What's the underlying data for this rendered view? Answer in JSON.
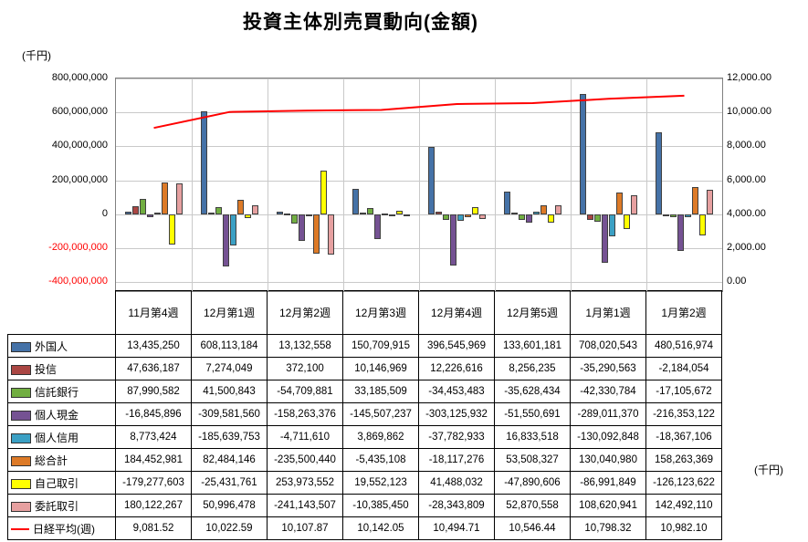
{
  "title": "投資主体別売買動向(金額)",
  "left_axis": {
    "unit": "(千円)",
    "ticks": [
      800000000,
      600000000,
      400000000,
      200000000,
      0,
      -200000000,
      -400000000
    ],
    "negative_tick_color": "#ff0000"
  },
  "right_axis": {
    "unit": "(千円)",
    "ticks": [
      12000,
      10000,
      8000,
      6000,
      4000,
      2000,
      0
    ]
  },
  "chart_data": {
    "type": "bar",
    "grid": true,
    "legend_position": "table-left",
    "categories": [
      "11月第4週",
      "12月第1週",
      "12月第2週",
      "12月第3週",
      "12月第4週",
      "12月第5週",
      "1月第1週",
      "1月第2週"
    ],
    "left_ylim": [
      -400000000,
      800000000
    ],
    "right_ylim": [
      0,
      12000
    ],
    "line_color": "#ff0000",
    "series": [
      {
        "name": "外国人",
        "kind": "bar",
        "color": "#4572a7",
        "values": [
          13435250,
          608113184,
          13132558,
          150709915,
          396545969,
          133601181,
          708020543,
          480516974
        ]
      },
      {
        "name": "投信",
        "kind": "bar",
        "color": "#aa4643",
        "values": [
          47636187,
          7274049,
          372100,
          10146969,
          12226616,
          8256235,
          -35290563,
          -2184054
        ]
      },
      {
        "name": "信託銀行",
        "kind": "bar",
        "color": "#71ae41",
        "values": [
          87990582,
          41500843,
          -54709881,
          33185509,
          -34453483,
          -35628434,
          -42330784,
          -17105672
        ]
      },
      {
        "name": "個人現金",
        "kind": "bar",
        "color": "#755293",
        "values": [
          -16845896,
          -309581560,
          -158263376,
          -145507237,
          -303125932,
          -51550691,
          -289011370,
          -216353122
        ]
      },
      {
        "name": "個人信用",
        "kind": "bar",
        "color": "#3ba0c4",
        "values": [
          8773424,
          -185639753,
          -4711610,
          3869862,
          -37782933,
          16833518,
          -130092848,
          -18367106
        ]
      },
      {
        "name": "総合計",
        "kind": "bar",
        "color": "#dd7a27",
        "values": [
          184452981,
          82484146,
          -235500440,
          -5435108,
          -18117276,
          53508327,
          130040980,
          158263369
        ]
      },
      {
        "name": "自己取引",
        "kind": "bar",
        "color": "#ffff00",
        "values": [
          -179277603,
          -25431761,
          253973552,
          19552123,
          41488032,
          -47890606,
          -86991849,
          -126123622
        ]
      },
      {
        "name": "委託取引",
        "kind": "bar",
        "color": "#e6a0a0",
        "values": [
          180122267,
          50996478,
          -241143507,
          -10385450,
          -28343809,
          52870558,
          108620941,
          142492110
        ]
      },
      {
        "name": "日経平均(週)",
        "kind": "line",
        "color": "#ff0000",
        "axis": "right",
        "decimals": 2,
        "values": [
          9081.52,
          10022.59,
          10107.87,
          10142.05,
          10494.71,
          10546.44,
          10798.32,
          10982.1
        ]
      }
    ]
  }
}
